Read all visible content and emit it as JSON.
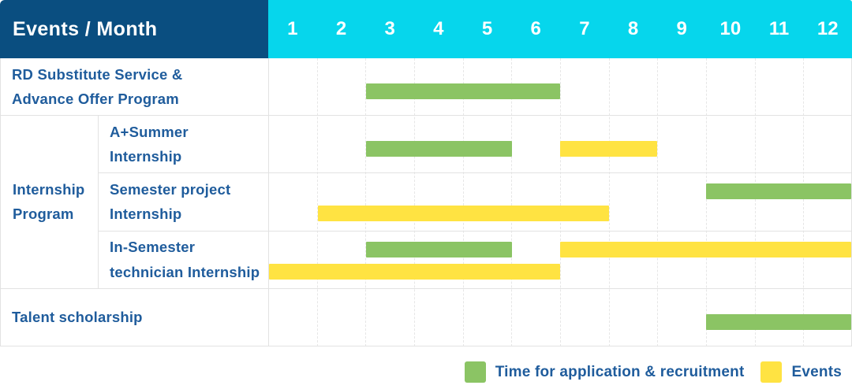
{
  "header": {
    "title": "Events / Month"
  },
  "colors": {
    "header_navy": "#0a4e80",
    "header_cyan": "#06d6ec",
    "bar_green": "#8bc464",
    "bar_yellow": "#ffe342",
    "label_blue": "#1f5c9c",
    "grid_border": "#e2e2e2"
  },
  "chart_data": {
    "type": "table",
    "subtype": "gantt-timeline",
    "title": "Events / Month",
    "x_axis": {
      "label": "Month",
      "categories": [
        "1",
        "2",
        "3",
        "4",
        "5",
        "6",
        "7",
        "8",
        "9",
        "10",
        "11",
        "12"
      ],
      "range": [
        1,
        12
      ],
      "grid": "dashed-vertical"
    },
    "series_legend": [
      {
        "key": "application",
        "label": "Time for application & recruitment",
        "color": "#8bc464"
      },
      {
        "key": "events",
        "label": "Events",
        "color": "#ffe342"
      }
    ],
    "legend_position": "bottom-right",
    "group_cell": {
      "label": "Internship\nProgram",
      "spans_row_indexes": [
        1,
        2,
        3
      ]
    },
    "rows": [
      {
        "label": "RD Substitute Service &\nAdvance Offer Program",
        "group": "",
        "bars": [
          {
            "series": "application",
            "start_month": 3,
            "end_month": 6,
            "track": "single"
          }
        ]
      },
      {
        "label": "A+Summer\nInternship",
        "group": "Internship Program",
        "bars": [
          {
            "series": "application",
            "start_month": 3,
            "end_month": 5,
            "track": "single"
          },
          {
            "series": "events",
            "start_month": 7,
            "end_month": 8,
            "track": "single"
          }
        ]
      },
      {
        "label": "Semester project\nInternship",
        "group": "Internship Program",
        "bars": [
          {
            "series": "application",
            "start_month": 10,
            "end_month": 12,
            "track": "top"
          },
          {
            "series": "events",
            "start_month": 2,
            "end_month": 7,
            "track": "bottom"
          }
        ]
      },
      {
        "label": "In-Semester\ntechnician Internship",
        "group": "Internship Program",
        "bars": [
          {
            "series": "application",
            "start_month": 3,
            "end_month": 5,
            "track": "top"
          },
          {
            "series": "events",
            "start_month": 7,
            "end_month": 12,
            "track": "top"
          },
          {
            "series": "events",
            "start_month": 1,
            "end_month": 6,
            "track": "bottom"
          }
        ]
      },
      {
        "label": "Talent scholarship",
        "group": "",
        "bars": [
          {
            "series": "application",
            "start_month": 10,
            "end_month": 12,
            "track": "single"
          }
        ]
      }
    ]
  }
}
